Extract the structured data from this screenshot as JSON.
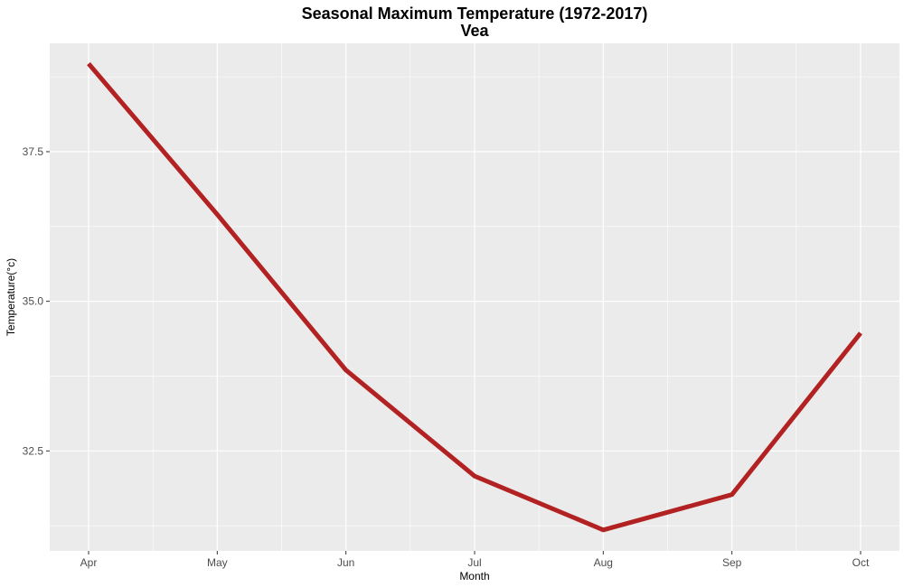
{
  "chart_data": {
    "type": "line",
    "title": "Seasonal Maximum Temperature (1972-2017)",
    "subtitle": "Vea",
    "xlabel": "Month",
    "ylabel": "Temperature(°c)",
    "categories": [
      "Apr",
      "May",
      "Jun",
      "Jul",
      "Aug",
      "Sep",
      "Oct"
    ],
    "series": [
      {
        "values": [
          38.97,
          36.45,
          33.85,
          32.08,
          31.18,
          31.77,
          34.47
        ],
        "color": "#b22222"
      }
    ],
    "ylim": [
      30.83,
      39.31
    ],
    "yticks": [
      32.5,
      35.0,
      37.5
    ],
    "ytick_labels": [
      "32.5",
      "35.0",
      "37.5"
    ],
    "grid": true,
    "legend": "none",
    "panel_background": "#ebebeb",
    "grid_color": "#ffffff"
  }
}
